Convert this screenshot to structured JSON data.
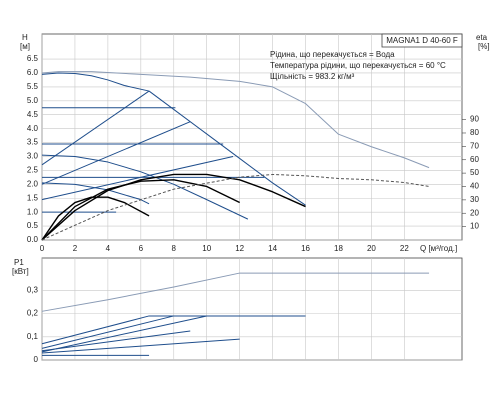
{
  "chart_data": [
    {
      "type": "line",
      "title": "MAGNA1 D 40-60 F",
      "annotations": [
        "Рідина, що перекачується = Вода",
        "Температура рідини, що перекачується = 60 °C",
        "Щільність = 983.2 кг/м³"
      ],
      "ylabel": "H",
      "ylabel_unit": "[м]",
      "y2label": "eta",
      "y2label_unit": "[%]",
      "xlabel": "Q [м³/год.]",
      "xlim": [
        0,
        25.5
      ],
      "ylim": [
        0,
        7.4
      ],
      "y2lim": [
        0,
        154
      ],
      "grid": true,
      "xticks": [
        0,
        2,
        4,
        6,
        8,
        10,
        12,
        14,
        16,
        18,
        20,
        22
      ],
      "yticks": [
        {
          "value": 0,
          "label": "0.0"
        },
        0.5,
        {
          "value": 1,
          "label": "1.0"
        },
        1.5,
        {
          "value": 2,
          "label": "2.0"
        },
        2.5,
        {
          "value": 3,
          "label": "3.0"
        },
        3.5,
        {
          "value": 4,
          "label": "4.0"
        },
        4.5,
        {
          "value": 5,
          "label": "5.0"
        },
        5.5,
        {
          "value": 6,
          "label": "6.0"
        },
        6.5
      ],
      "y2ticks": [
        10,
        20,
        30,
        40,
        50,
        60,
        70,
        80,
        90
      ],
      "series": [
        {
          "color": "#8a9bb5",
          "x": [
            0,
            1,
            3,
            6,
            9,
            12,
            14,
            16,
            18,
            20,
            22,
            23.5
          ],
          "values": [
            6.0,
            6.05,
            6.05,
            5.95,
            5.85,
            5.7,
            5.5,
            4.9,
            3.8,
            3.35,
            2.95,
            2.6
          ]
        },
        {
          "color": "#1f4e8c",
          "x": [
            0,
            1,
            2,
            3,
            4,
            5,
            6.5,
            8,
            10,
            12,
            14,
            16
          ],
          "values": [
            5.95,
            6.0,
            5.98,
            5.9,
            5.75,
            5.55,
            5.35,
            4.69,
            3.81,
            2.93,
            2.05,
            1.25
          ]
        },
        {
          "color": "#1f4e8c",
          "x": [
            0,
            8.1
          ],
          "values": [
            4.75,
            4.75
          ]
        },
        {
          "color": "#1f4e8c",
          "x": [
            0,
            11
          ],
          "values": [
            3.45,
            3.45
          ]
        },
        {
          "color": "#1f4e8c",
          "x": [
            0,
            13.5
          ],
          "values": [
            2.25,
            2.25
          ]
        },
        {
          "color": "#1f4e8c",
          "x": [
            0,
            4.5
          ],
          "values": [
            1.0,
            1.0
          ]
        },
        {
          "color": "#1f4e8c",
          "x": [
            0,
            6.5
          ],
          "values": [
            2.7,
            5.35
          ]
        },
        {
          "color": "#1f4e8c",
          "x": [
            0,
            9
          ],
          "values": [
            2.0,
            4.25
          ]
        },
        {
          "color": "#1f4e8c",
          "x": [
            0,
            11.6
          ],
          "values": [
            1.45,
            3.0
          ]
        },
        {
          "color": "#1f4e8c",
          "x": [
            0,
            2,
            4,
            6,
            8,
            10,
            12.5
          ],
          "values": [
            3.05,
            3.0,
            2.8,
            2.45,
            2.0,
            1.45,
            0.75
          ]
        },
        {
          "color": "#1f4e8c",
          "x": [
            0,
            2,
            4,
            6,
            6.5
          ],
          "values": [
            2.05,
            2.0,
            1.8,
            1.45,
            1.3
          ]
        },
        {
          "color": "#000000",
          "axis": "y2",
          "x": [
            0,
            2,
            4,
            6,
            8,
            10,
            12,
            14,
            16
          ],
          "values": [
            0,
            22,
            37,
            45,
            49,
            49,
            45,
            36,
            25
          ]
        },
        {
          "color": "#000000",
          "axis": "y2",
          "x": [
            0,
            2,
            4,
            6,
            8,
            10,
            12
          ],
          "values": [
            0,
            25,
            38,
            44,
            45,
            40,
            28
          ]
        },
        {
          "color": "#000000",
          "axis": "y2",
          "x": [
            0,
            1,
            2,
            3,
            4,
            5,
            6.5
          ],
          "values": [
            0,
            18,
            28,
            32,
            32,
            28,
            18
          ]
        },
        {
          "color": "#555555",
          "axis": "y2",
          "dash": true,
          "x": [
            0,
            4,
            8,
            12,
            14,
            16,
            18,
            20,
            22,
            23.5
          ],
          "values": [
            0,
            22,
            38,
            47,
            49,
            48,
            46,
            45,
            43,
            40
          ]
        }
      ]
    },
    {
      "type": "line",
      "ylabel": "P1",
      "ylabel_unit": "[кВт]",
      "xlim": [
        0,
        25.5
      ],
      "ylim": [
        0,
        0.44
      ],
      "grid": true,
      "yticks": [
        0,
        {
          "value": 0.1,
          "label": "0,1"
        },
        {
          "value": 0.2,
          "label": "0,2"
        },
        {
          "value": 0.3,
          "label": "0,3"
        }
      ],
      "series": [
        {
          "color": "#8a9bb5",
          "x": [
            0,
            4,
            8,
            12,
            16,
            20,
            23.5
          ],
          "values": [
            0.21,
            0.26,
            0.315,
            0.375,
            0.375,
            0.375,
            0.375
          ]
        },
        {
          "color": "#1f4e8c",
          "x": [
            0,
            6.5,
            16
          ],
          "values": [
            0.07,
            0.19,
            0.19
          ]
        },
        {
          "color": "#1f4e8c",
          "x": [
            0,
            8,
            12
          ],
          "values": [
            0.05,
            0.19,
            0.19
          ]
        },
        {
          "color": "#1f4e8c",
          "x": [
            0,
            10,
            16
          ],
          "values": [
            0.035,
            0.19,
            0.19
          ]
        },
        {
          "color": "#1f4e8c",
          "x": [
            0,
            12
          ],
          "values": [
            0.03,
            0.09
          ]
        },
        {
          "color": "#1f4e8c",
          "x": [
            0,
            9
          ],
          "values": [
            0.04,
            0.125
          ]
        },
        {
          "color": "#1f4e8c",
          "x": [
            0,
            6.5
          ],
          "values": [
            0.02,
            0.02
          ]
        }
      ]
    }
  ]
}
